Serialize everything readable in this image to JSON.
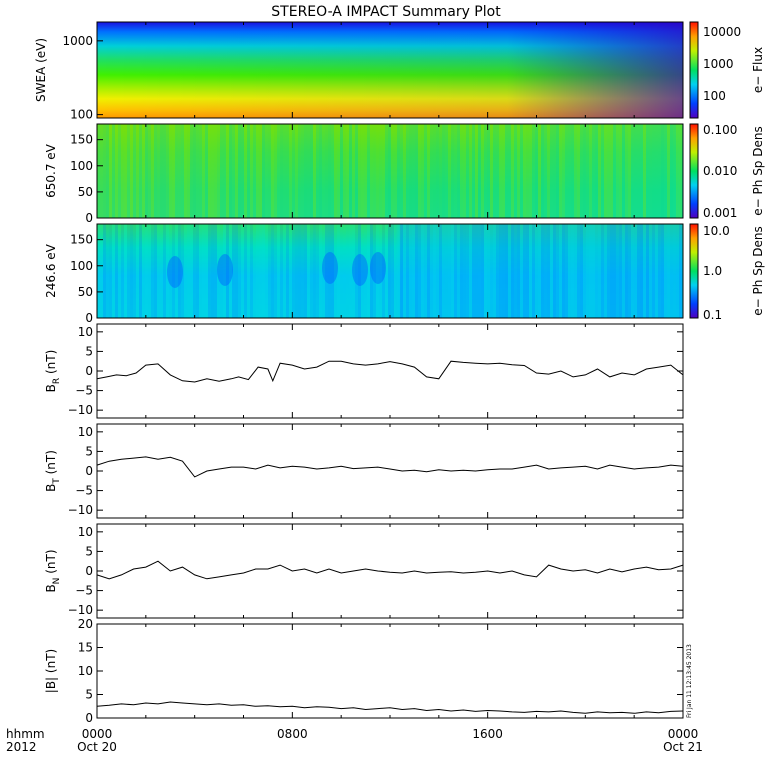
{
  "figure": {
    "title": "STEREO-A IMPACT Summary Plot",
    "footer_left_1": "hhmm",
    "footer_left_2": "2012",
    "timestamp": "Fri Jan 11 12:13:45 2013"
  },
  "chart_data": [
    {
      "type": "heatmap",
      "ylabel": "SWEA (eV)",
      "yscale": "log",
      "ylim": [
        90,
        1800
      ],
      "yticks": [
        "1000",
        "100"
      ],
      "colorbar_label": "e− Flux",
      "colorbar_ticks": [
        "10000",
        "1000",
        "100"
      ],
      "colorbar_scale": "log",
      "description_values": {
        "low_energy_flux": 20000,
        "high_energy_flux": 60
      }
    },
    {
      "type": "heatmap",
      "ylabel": "650.7 eV",
      "ylim": [
        0,
        180
      ],
      "yticks": [
        "0",
        "50",
        "100",
        "150"
      ],
      "colorbar_label": "e− Ph Sp Dens",
      "colorbar_ticks": [
        "0.100",
        "0.010",
        "0.001"
      ],
      "colorbar_scale": "log"
    },
    {
      "type": "heatmap",
      "ylabel": "246.6 eV",
      "ylim": [
        0,
        180
      ],
      "yticks": [
        "0",
        "50",
        "100",
        "150"
      ],
      "colorbar_label": "e− Ph Sp Dens",
      "colorbar_ticks": [
        "10.0",
        "1.0",
        "0.1"
      ],
      "colorbar_scale": "log"
    },
    {
      "type": "line",
      "ylabel": "B",
      "ylabel_sub": "R",
      "ylabel_unit": " (nT)",
      "ylim": [
        -12,
        12
      ],
      "yticks": [
        "10",
        "5",
        "0",
        "−5",
        "−10"
      ],
      "x_hours": [
        0,
        0.4,
        0.8,
        1.2,
        1.6,
        2,
        2.5,
        3,
        3.5,
        4,
        4.5,
        5,
        5.5,
        5.8,
        6.2,
        6.6,
        7,
        7.2,
        7.5,
        8,
        8.5,
        9,
        9.5,
        10,
        10.5,
        11,
        11.5,
        12,
        12.5,
        13,
        13.5,
        14,
        14.5,
        15,
        15.5,
        16,
        16.5,
        17,
        17.5,
        18,
        18.5,
        19,
        19.5,
        20,
        20.5,
        21,
        21.5,
        22,
        22.5,
        23,
        23.5,
        24
      ],
      "y": [
        -2,
        -1.5,
        -1,
        -1.2,
        -0.5,
        1.5,
        1.8,
        -1,
        -2.5,
        -2.8,
        -2,
        -2.6,
        -2,
        -1.5,
        -2.2,
        1,
        0.5,
        -2.5,
        2,
        1.5,
        0.5,
        1,
        2.5,
        2.5,
        1.8,
        1.5,
        1.8,
        2.4,
        1.8,
        1,
        -1.5,
        -2,
        2.5,
        2.2,
        2,
        1.8,
        2,
        1.6,
        1.4,
        -0.5,
        -0.8,
        0,
        -1.5,
        -1,
        0.5,
        -1.5,
        -0.5,
        -1,
        0.5,
        1,
        1.5,
        -1
      ]
    },
    {
      "type": "line",
      "ylabel": "B",
      "ylabel_sub": "T",
      "ylabel_unit": " (nT)",
      "ylim": [
        -12,
        12
      ],
      "yticks": [
        "10",
        "5",
        "0",
        "−5",
        "−10"
      ],
      "x_hours": [
        0,
        0.5,
        1,
        1.5,
        2,
        2.5,
        3,
        3.5,
        4,
        4.5,
        5,
        5.5,
        6,
        6.5,
        7,
        7.5,
        8,
        8.5,
        9,
        9.5,
        10,
        10.5,
        11,
        11.5,
        12,
        12.5,
        13,
        13.5,
        14,
        14.5,
        15,
        15.5,
        16,
        16.5,
        17,
        17.5,
        18,
        18.5,
        19,
        19.5,
        20,
        20.5,
        21,
        21.5,
        22,
        22.5,
        23,
        23.5,
        24
      ],
      "y": [
        1.5,
        2.5,
        3,
        3.3,
        3.6,
        3,
        3.5,
        2.5,
        -1.5,
        0,
        0.5,
        1,
        1,
        0.5,
        1.5,
        0.8,
        1.2,
        1,
        0.5,
        0.8,
        1.2,
        0.6,
        0.8,
        1,
        0.5,
        0,
        0.2,
        -0.2,
        0.3,
        0,
        0.2,
        0,
        0.3,
        0.5,
        0.5,
        1,
        1.5,
        0.5,
        0.8,
        1,
        1.2,
        0.5,
        1.5,
        1,
        0.5,
        0.8,
        1,
        1.5,
        1.2
      ]
    },
    {
      "type": "line",
      "ylabel": "B",
      "ylabel_sub": "N",
      "ylabel_unit": " (nT)",
      "ylim": [
        -12,
        12
      ],
      "yticks": [
        "10",
        "5",
        "0",
        "−5",
        "−10"
      ],
      "x_hours": [
        0,
        0.5,
        1,
        1.5,
        2,
        2.5,
        3,
        3.5,
        4,
        4.5,
        5,
        5.5,
        6,
        6.5,
        7,
        7.5,
        8,
        8.5,
        9,
        9.5,
        10,
        10.5,
        11,
        11.5,
        12,
        12.5,
        13,
        13.5,
        14,
        14.5,
        15,
        15.5,
        16,
        16.5,
        17,
        17.5,
        18,
        18.5,
        19,
        19.5,
        20,
        20.5,
        21,
        21.5,
        22,
        22.5,
        23,
        23.5,
        24
      ],
      "y": [
        -1,
        -2,
        -1,
        0.5,
        1,
        2.5,
        0,
        1,
        -1,
        -2,
        -1.5,
        -1,
        -0.5,
        0.5,
        0.5,
        1.5,
        0,
        0.5,
        -0.5,
        0.5,
        -0.5,
        0,
        0.5,
        0,
        -0.3,
        -0.5,
        0,
        -0.5,
        -0.3,
        -0.2,
        -0.5,
        -0.3,
        0,
        -0.5,
        0,
        -1,
        -1.5,
        1.5,
        0.5,
        0,
        0.3,
        -0.5,
        0.5,
        -0.2,
        0.5,
        1,
        0.3,
        0.5,
        1.5
      ]
    },
    {
      "type": "line",
      "ylabel": "|B| (nT)",
      "ylim": [
        0,
        20
      ],
      "yticks": [
        "20",
        "15",
        "10",
        "5",
        "0"
      ],
      "xticks": [
        "0000",
        "0800",
        "1600",
        "0000"
      ],
      "xticks_sub": [
        "Oct 20",
        "",
        "",
        "Oct 21"
      ],
      "x_hours": [
        0,
        0.5,
        1,
        1.5,
        2,
        2.5,
        3,
        3.5,
        4,
        4.5,
        5,
        5.5,
        6,
        6.5,
        7,
        7.5,
        8,
        8.5,
        9,
        9.5,
        10,
        10.5,
        11,
        11.5,
        12,
        12.5,
        13,
        13.5,
        14,
        14.5,
        15,
        15.5,
        16,
        16.5,
        17,
        17.5,
        18,
        18.5,
        19,
        19.5,
        20,
        20.5,
        21,
        21.5,
        22,
        22.5,
        23,
        23.5,
        24
      ],
      "y": [
        2.5,
        2.7,
        3,
        2.8,
        3.2,
        3,
        3.4,
        3.2,
        3,
        2.8,
        3,
        2.7,
        2.8,
        2.5,
        2.6,
        2.4,
        2.5,
        2.2,
        2.4,
        2.3,
        2,
        2.2,
        1.8,
        2,
        2.2,
        1.8,
        2,
        1.6,
        1.8,
        1.5,
        1.7,
        1.4,
        1.6,
        1.5,
        1.3,
        1.2,
        1.4,
        1.3,
        1.5,
        1.2,
        1,
        1.3,
        1.1,
        1.2,
        1,
        1.3,
        1.1,
        1.4,
        1.5
      ]
    }
  ]
}
